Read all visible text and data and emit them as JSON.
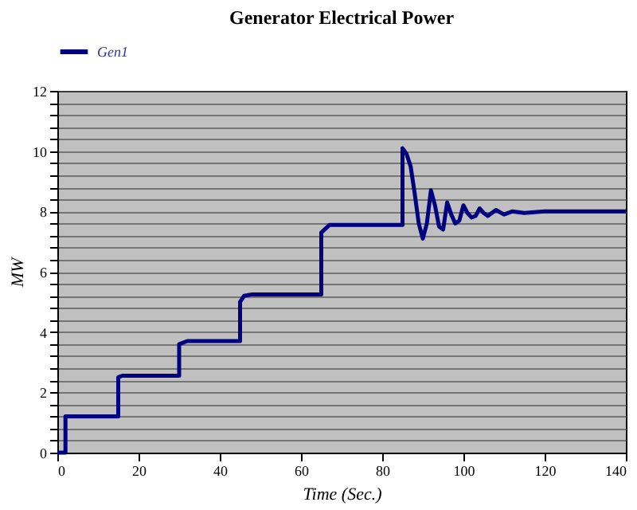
{
  "chart_data": {
    "type": "line",
    "title": "Generator Electrical Power",
    "xlabel": "Time (Sec.)",
    "ylabel": "MW",
    "xlim": [
      0,
      140
    ],
    "xticks": [
      0,
      20,
      40,
      60,
      80,
      100,
      120,
      140
    ],
    "ylim": [
      0,
      12
    ],
    "yticks": [
      0,
      {
        "value": 0.4,
        "label": null
      },
      {
        "value": 0.8,
        "label": null
      },
      {
        "value": 1.2,
        "label": null
      },
      {
        "value": 1.6,
        "label": null
      },
      2,
      {
        "value": 2.4,
        "label": null
      },
      {
        "value": 2.8,
        "label": null
      },
      {
        "value": 3.2,
        "label": null
      },
      {
        "value": 3.6,
        "label": null
      },
      4,
      {
        "value": 4.4,
        "label": null
      },
      {
        "value": 4.8,
        "label": null
      },
      {
        "value": 5.2,
        "label": null
      },
      {
        "value": 5.6,
        "label": null
      },
      6,
      {
        "value": 6.4,
        "label": null
      },
      {
        "value": 6.8,
        "label": null
      },
      {
        "value": 7.2,
        "label": null
      },
      {
        "value": 7.6,
        "label": null
      },
      8,
      {
        "value": 8.4,
        "label": null
      },
      {
        "value": 8.8,
        "label": null
      },
      {
        "value": 9.2,
        "label": null
      },
      {
        "value": 9.6,
        "label": null
      },
      10,
      {
        "value": 10.4,
        "label": null
      },
      {
        "value": 10.8,
        "label": null
      },
      {
        "value": 11.2,
        "label": null
      },
      {
        "value": 11.6,
        "label": null
      },
      12
    ],
    "grid": "y",
    "legend": "top left",
    "marker": "none",
    "line_style": "solid",
    "series": [
      {
        "name": "Gen1",
        "color": "#000080",
        "x": [
          0,
          2,
          2,
          15,
          15,
          16,
          30,
          30,
          32,
          45,
          45,
          46,
          48,
          65,
          65,
          67,
          85,
          85,
          86,
          87,
          88,
          89,
          90,
          91,
          92,
          93,
          94,
          95,
          96,
          97,
          98,
          99,
          100,
          101,
          102,
          103,
          104,
          105,
          106,
          108,
          110,
          112,
          115,
          120,
          140
        ],
        "values": [
          0,
          0,
          1.2,
          1.2,
          2.5,
          2.55,
          2.55,
          3.6,
          3.7,
          3.7,
          5.0,
          5.2,
          5.25,
          5.25,
          7.3,
          7.55,
          7.55,
          10.1,
          9.9,
          9.5,
          8.6,
          7.6,
          7.1,
          7.6,
          8.7,
          8.2,
          7.5,
          7.4,
          8.3,
          7.9,
          7.6,
          7.7,
          8.2,
          7.95,
          7.8,
          7.85,
          8.1,
          7.95,
          7.85,
          8.05,
          7.9,
          8.0,
          7.95,
          8.0,
          8.0
        ]
      }
    ]
  }
}
